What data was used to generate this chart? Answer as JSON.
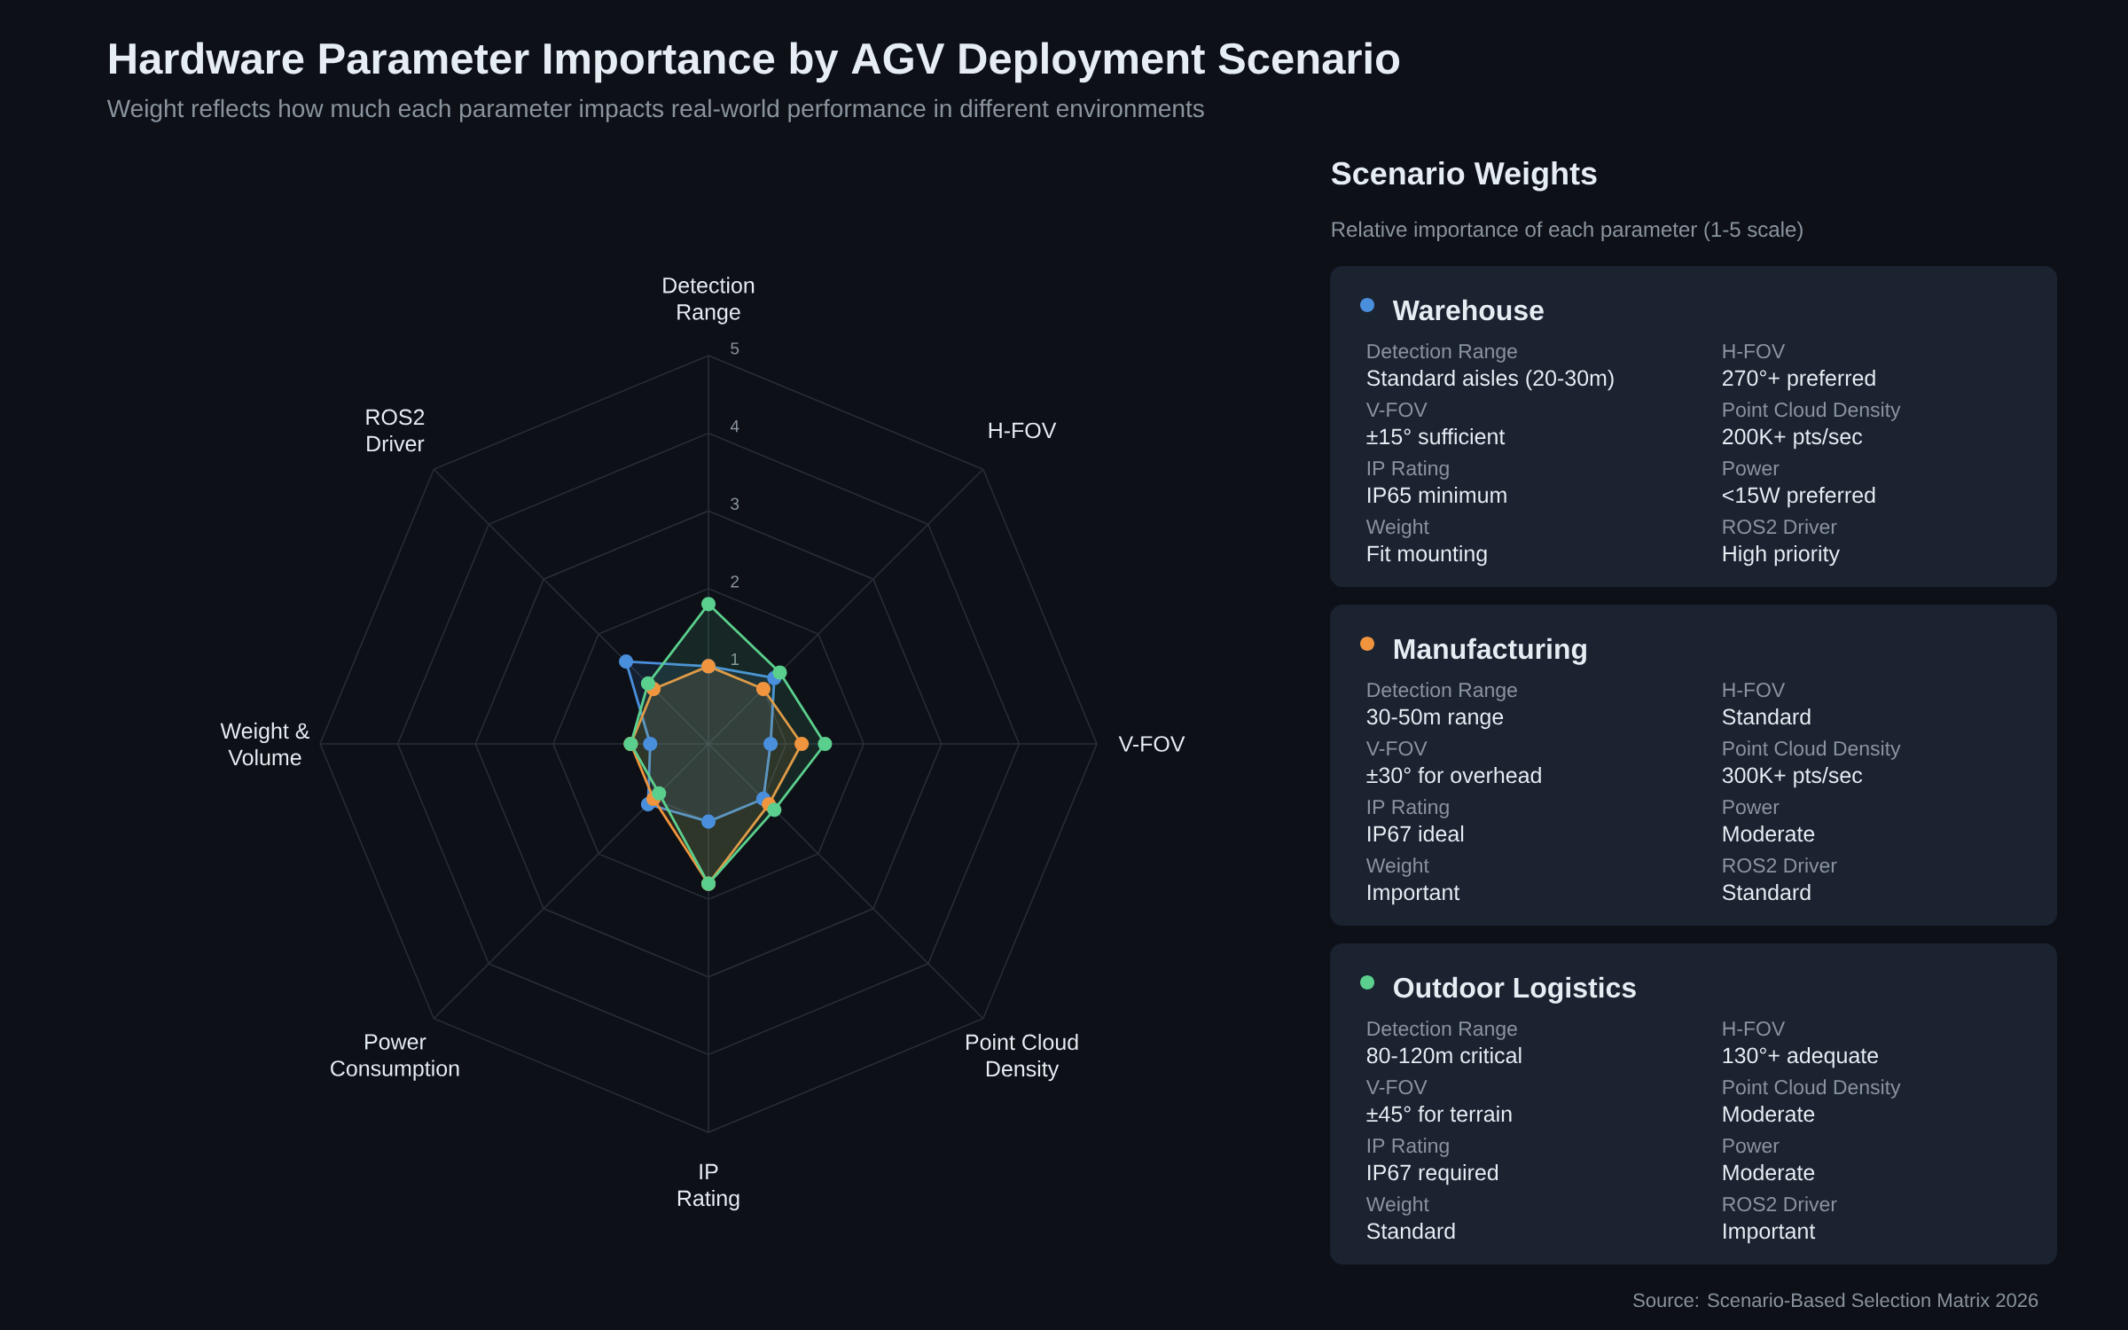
{
  "chart_data": [
    {
      "type": "radar",
      "title": "Hardware Parameter Importance by AGV Deployment Scenario",
      "subtitle": "Weight reflects how much each parameter impacts real-world performance in different environments",
      "categories": [
        "Detection Range",
        "H-FOV",
        "V-FOV",
        "Point Cloud Density",
        "IP Rating",
        "Power Consumption",
        "Weight & Volume",
        "ROS2 Driver"
      ],
      "series": [
        {
          "name": "Warehouse",
          "color": "#4a8fdc",
          "values": [
            1.0,
            1.2,
            0.8,
            1.0,
            1.0,
            1.1,
            0.75,
            1.5
          ]
        },
        {
          "name": "Manufacturing",
          "color": "#f0953e",
          "values": [
            1.0,
            1.0,
            1.2,
            1.1,
            1.8,
            1.0,
            1.0,
            1.0
          ]
        },
        {
          "name": "Outdoor Logistics",
          "color": "#5bcf8d",
          "values": [
            1.8,
            1.3,
            1.5,
            1.2,
            1.8,
            0.9,
            1.0,
            1.1
          ]
        }
      ],
      "ylim": [
        0,
        5
      ],
      "yticks": [
        1,
        2,
        3,
        4,
        5
      ],
      "grid": true,
      "legend": "right",
      "marker": "circle",
      "line_style": "solid",
      "annotations": [
        "Source: Scenario-Based Selection Matrix 2026"
      ]
    },
    {
      "type": "other",
      "title": "Scenario Weights",
      "subtitle": "Relative importance of each parameter (1-5 scale)",
      "annotations": [
        "Detection Range",
        "Standard aisles (20-30m)",
        "H-FOV",
        "270°+ preferred",
        "V-FOV",
        "±15° sufficient",
        "Point Cloud Density",
        "200K+ pts/sec",
        "IP Rating",
        "IP65 minimum",
        "Power",
        "<15W preferred",
        "Weight",
        "Fit mounting",
        "ROS2 Driver",
        "High priority",
        "Detection Range",
        "30-50m range",
        "H-FOV",
        "Standard",
        "V-FOV",
        "±30° for overhead",
        "Point Cloud Density",
        "300K+ pts/sec",
        "IP Rating",
        "IP67 ideal",
        "Power",
        "Moderate",
        "Weight",
        "Important",
        "ROS2 Driver",
        "Standard",
        "Detection Range",
        "80-120m critical",
        "H-FOV",
        "130°+ adequate",
        "V-FOV",
        "±45° for terrain",
        "Point Cloud Density",
        "Moderate",
        "IP Rating",
        "IP67 required",
        "Power",
        "Moderate",
        "Weight",
        "Standard",
        "ROS2 Driver",
        "Important"
      ]
    }
  ]
}
